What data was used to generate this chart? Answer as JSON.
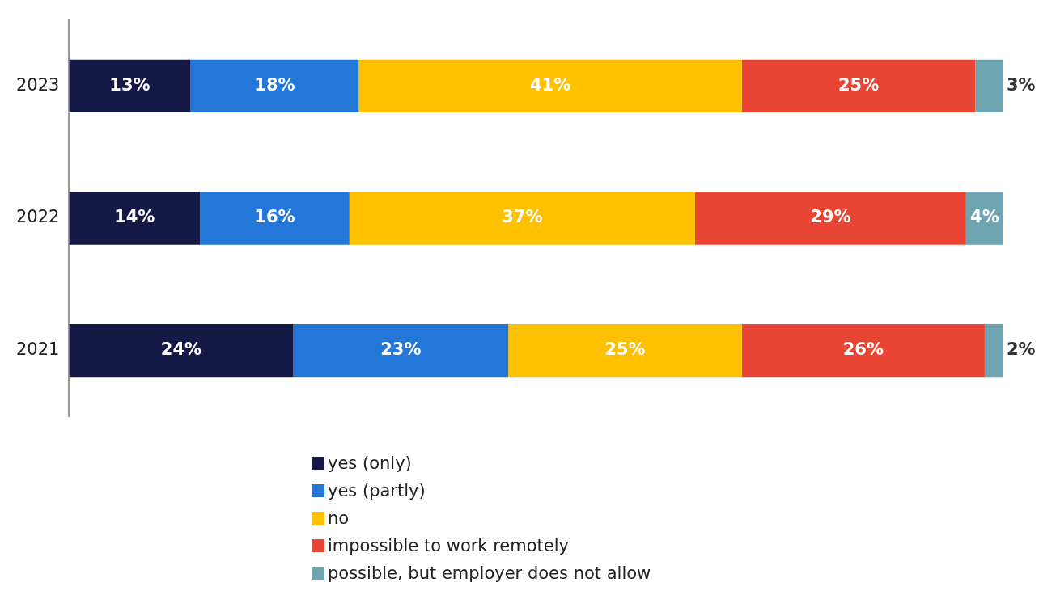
{
  "chart_data": {
    "type": "bar",
    "orientation": "horizontal",
    "stacked": true,
    "categories": [
      "2023",
      "2022",
      "2021"
    ],
    "xlim": [
      0,
      100
    ],
    "tick_labels": "y",
    "legend": "bottom",
    "series": [
      {
        "name": "yes (only)",
        "color": "#141a45",
        "values": [
          13,
          14,
          24
        ],
        "value_labels": [
          "13%",
          "14%",
          "24%"
        ]
      },
      {
        "name": "yes (partly)",
        "color": "#2277d9",
        "values": [
          18,
          16,
          23
        ],
        "value_labels": [
          "18%",
          "16%",
          "23%"
        ]
      },
      {
        "name": "no",
        "color": "#ffc000",
        "values": [
          41,
          37,
          25
        ],
        "value_labels": [
          "41%",
          "37%",
          "25%"
        ]
      },
      {
        "name": "impossible to work remotely",
        "color": "#e84535",
        "values": [
          25,
          29,
          26
        ],
        "value_labels": [
          "25%",
          "29%",
          "26%"
        ]
      },
      {
        "name": "possible, but employer does not allow",
        "color": "#6fa5b0",
        "values": [
          3,
          4,
          2
        ],
        "value_labels": [
          "3%",
          "4%",
          "2%"
        ]
      }
    ]
  }
}
